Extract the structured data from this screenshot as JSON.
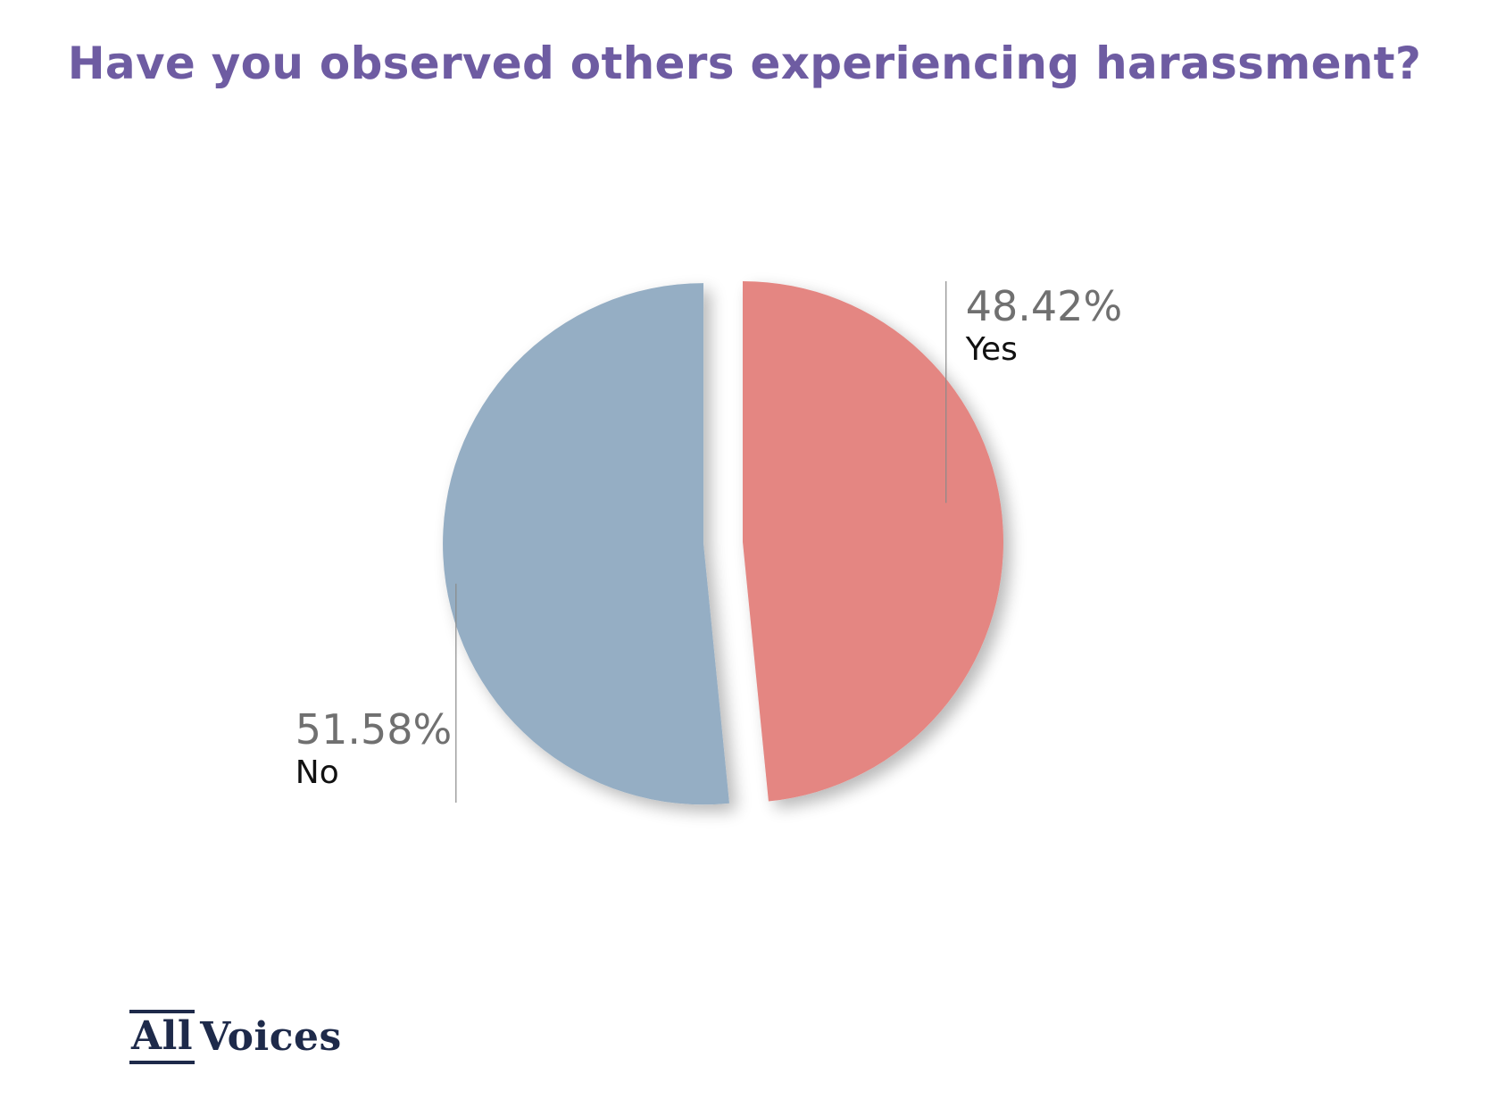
{
  "title": "Have you observed others experiencing harassment?",
  "chart_data": {
    "type": "pie",
    "title": "Have you observed others experiencing harassment?",
    "slices": [
      {
        "label": "Yes",
        "value": 48.42,
        "value_label": "48.42%",
        "color": "#e48682",
        "exploded": false
      },
      {
        "label": "No",
        "value": 51.58,
        "value_label": "51.58%",
        "color": "#95aec4",
        "exploded": true
      }
    ],
    "start_angle": "12 o'clock",
    "direction": "clockwise",
    "legend": "none"
  },
  "logo": {
    "part1": "All",
    "part2": "Voices"
  }
}
